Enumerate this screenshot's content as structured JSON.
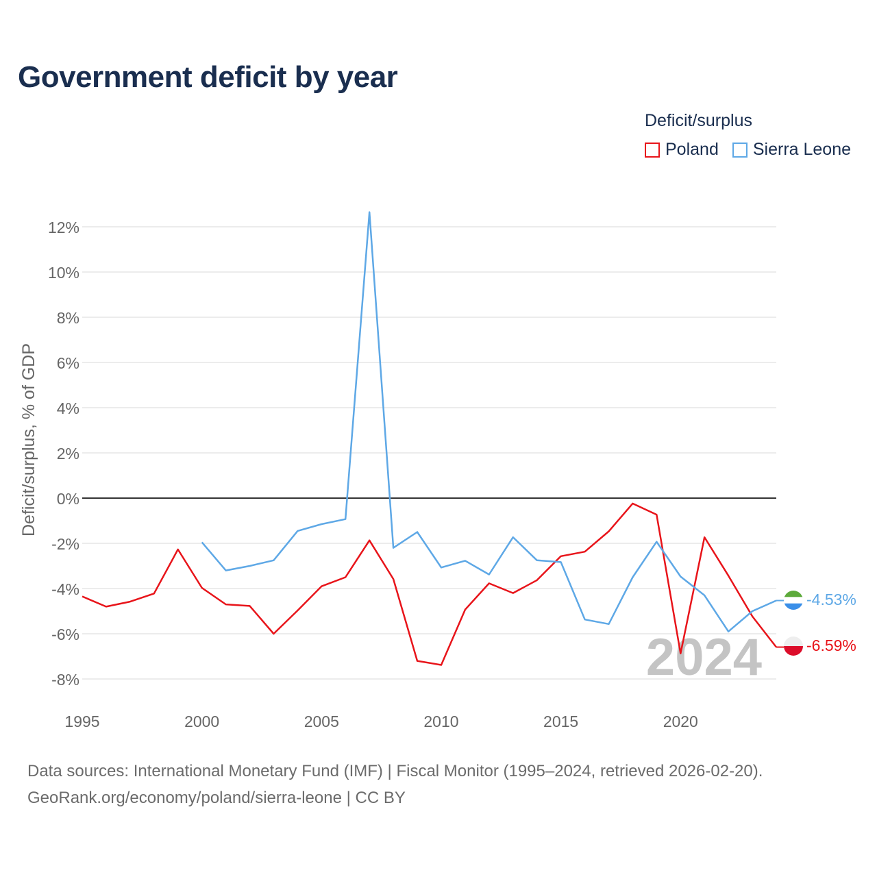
{
  "chart_data": {
    "type": "line",
    "title": "Government deficit by year",
    "ylabel": "Deficit/surplus, % of GDP",
    "xlabel": "",
    "legend_title": "Deficit/surplus",
    "legend_position": "top-right",
    "year_watermark": "2024",
    "xlim": [
      1995,
      2024
    ],
    "ylim": [
      -9,
      13
    ],
    "y_ticks": [
      12,
      10,
      8,
      6,
      4,
      2,
      0,
      -2,
      -4,
      -6,
      -8
    ],
    "y_tick_labels": [
      "12%",
      "10%",
      "8%",
      "6%",
      "4%",
      "2%",
      "0%",
      "-2%",
      "-4%",
      "-6%",
      "-8%"
    ],
    "x_ticks": [
      1995,
      2000,
      2005,
      2010,
      2015,
      2020
    ],
    "x_tick_labels": [
      "1995",
      "2000",
      "2005",
      "2010",
      "2015",
      "2020"
    ],
    "grid": true,
    "series": [
      {
        "name": "Poland",
        "color": "#e8141a",
        "end_label": "-6.59%",
        "points": [
          [
            1995,
            -4.35
          ],
          [
            1996,
            -4.8
          ],
          [
            1997,
            -4.58
          ],
          [
            1998,
            -4.22
          ],
          [
            1999,
            -2.27
          ],
          [
            2000,
            -3.97
          ],
          [
            2001,
            -4.7
          ],
          [
            2002,
            -4.77
          ],
          [
            2003,
            -6.0
          ],
          [
            2004,
            -4.97
          ],
          [
            2005,
            -3.9
          ],
          [
            2006,
            -3.5
          ],
          [
            2007,
            -1.87
          ],
          [
            2008,
            -3.58
          ],
          [
            2009,
            -7.2
          ],
          [
            2010,
            -7.38
          ],
          [
            2011,
            -4.93
          ],
          [
            2012,
            -3.77
          ],
          [
            2013,
            -4.2
          ],
          [
            2014,
            -3.63
          ],
          [
            2015,
            -2.57
          ],
          [
            2016,
            -2.37
          ],
          [
            2017,
            -1.47
          ],
          [
            2018,
            -0.24
          ],
          [
            2019,
            -0.73
          ],
          [
            2020,
            -6.87
          ],
          [
            2021,
            -1.73
          ],
          [
            2022,
            -3.43
          ],
          [
            2023,
            -5.23
          ],
          [
            2024,
            -6.59
          ]
        ]
      },
      {
        "name": "Sierra Leone",
        "color": "#5ea8e6",
        "end_label": "-4.53%",
        "points": [
          [
            2000,
            -1.95
          ],
          [
            2001,
            -3.2
          ],
          [
            2002,
            -3.0
          ],
          [
            2003,
            -2.75
          ],
          [
            2004,
            -1.45
          ],
          [
            2005,
            -1.15
          ],
          [
            2006,
            -0.93
          ],
          [
            2007,
            12.65
          ],
          [
            2008,
            -2.2
          ],
          [
            2009,
            -1.5
          ],
          [
            2010,
            -3.07
          ],
          [
            2011,
            -2.77
          ],
          [
            2012,
            -3.38
          ],
          [
            2013,
            -1.73
          ],
          [
            2014,
            -2.75
          ],
          [
            2015,
            -2.83
          ],
          [
            2016,
            -5.37
          ],
          [
            2017,
            -5.57
          ],
          [
            2018,
            -3.5
          ],
          [
            2019,
            -1.93
          ],
          [
            2020,
            -3.47
          ],
          [
            2021,
            -4.3
          ],
          [
            2022,
            -5.9
          ],
          [
            2023,
            -5.0
          ],
          [
            2024,
            -4.53
          ]
        ]
      }
    ]
  },
  "footer": {
    "line1": "Data sources: International Monetary Fund (IMF) | Fiscal Monitor (1995–2024, retrieved 2026-02-20).",
    "line2": "GeoRank.org/economy/poland/sierra-leone | CC BY"
  }
}
